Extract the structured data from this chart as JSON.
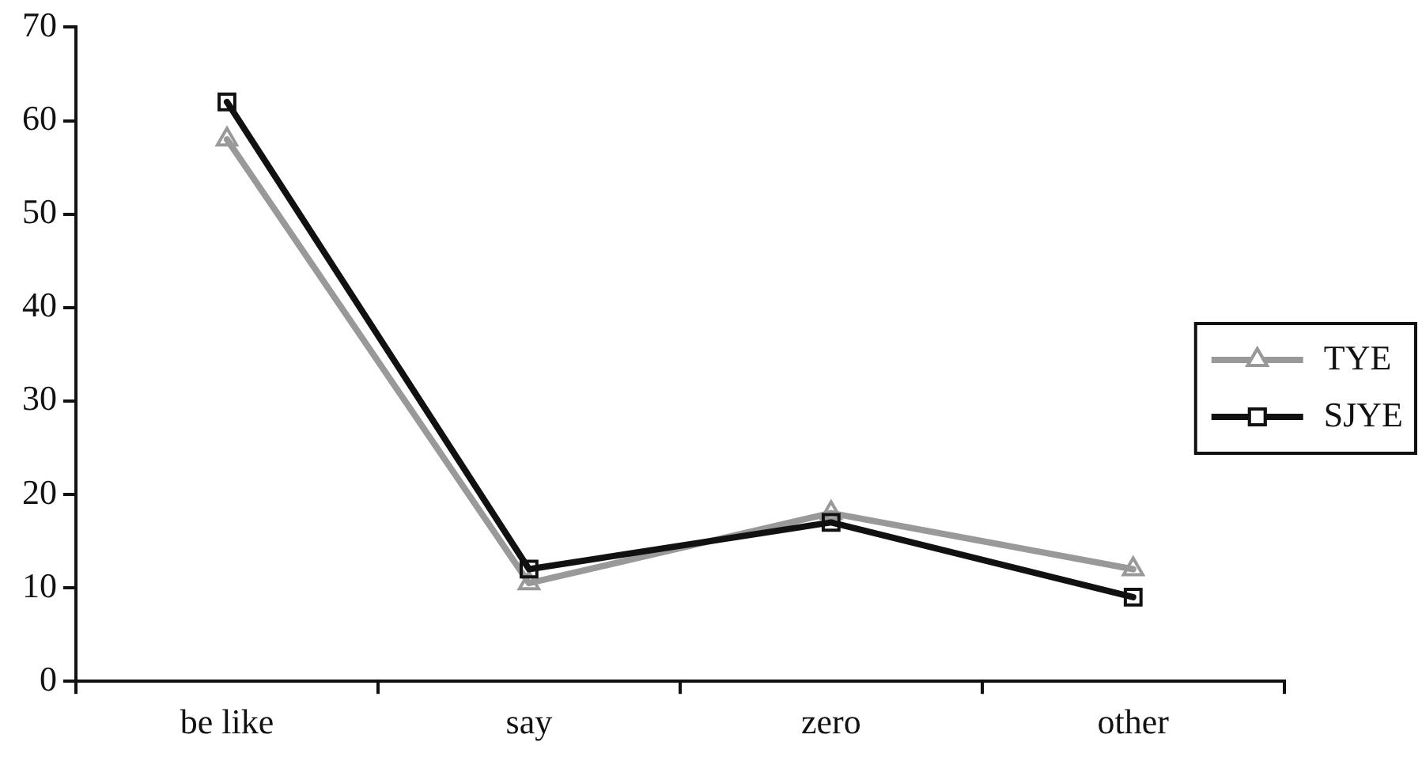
{
  "chart_data": {
    "type": "line",
    "categories": [
      "be like",
      "say",
      "zero",
      "other"
    ],
    "series": [
      {
        "name": "TYE",
        "color": "#999999",
        "marker": "triangle",
        "values": [
          58,
          10.5,
          18,
          12
        ]
      },
      {
        "name": "SJYE",
        "color": "#111111",
        "marker": "square",
        "values": [
          62,
          12,
          17,
          9
        ]
      }
    ],
    "ylim": [
      0,
      70
    ],
    "yticks": [
      0,
      10,
      20,
      30,
      40,
      50,
      60,
      70
    ],
    "legend": "right",
    "line_style": "solid"
  }
}
